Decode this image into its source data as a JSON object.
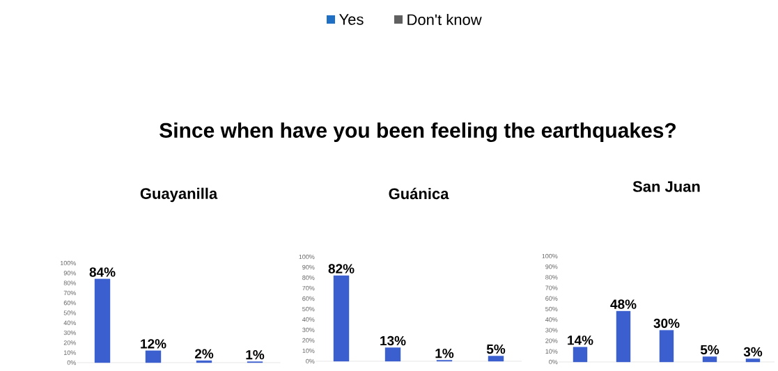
{
  "chart_data": [
    {
      "type": "other",
      "title": "Since when have you been feeling the earthquakes?",
      "annotations": [
        "Yes",
        "Don't know"
      ]
    },
    {
      "type": "bar",
      "title": "Guayanilla",
      "categories": [
        null,
        null,
        null,
        null
      ],
      "values": [
        84,
        12,
        2,
        1
      ],
      "value_labels": [
        "84%",
        "12%",
        "2%",
        "1%"
      ],
      "color": "#3b5fcf",
      "ylim": [
        0,
        100
      ],
      "yticks": [
        {
          "value": 0,
          "label": "0%"
        },
        {
          "value": 10,
          "label": "10%"
        },
        {
          "value": 20,
          "label": "20%"
        },
        {
          "value": 30,
          "label": "30%"
        },
        {
          "value": 40,
          "label": "40%"
        },
        {
          "value": 50,
          "label": "50%"
        },
        {
          "value": 60,
          "label": "60%"
        },
        {
          "value": 70,
          "label": "70%"
        },
        {
          "value": 80,
          "label": "80%"
        },
        {
          "value": 90,
          "label": "90%"
        },
        {
          "value": 100,
          "label": "100%"
        }
      ]
    },
    {
      "type": "bar",
      "title": "Guánica",
      "categories": [
        null,
        null,
        null,
        null
      ],
      "values": [
        82,
        13,
        1,
        5
      ],
      "value_labels": [
        "82%",
        "13%",
        "1%",
        "5%"
      ],
      "color": "#3b5fcf",
      "ylim": [
        0,
        100
      ],
      "yticks": [
        {
          "value": 0,
          "label": "0%"
        },
        {
          "value": 10,
          "label": "10%"
        },
        {
          "value": 20,
          "label": "20%"
        },
        {
          "value": 30,
          "label": "30%"
        },
        {
          "value": 40,
          "label": "40%"
        },
        {
          "value": 50,
          "label": "50%"
        },
        {
          "value": 60,
          "label": "60%"
        },
        {
          "value": 70,
          "label": "70%"
        },
        {
          "value": 80,
          "label": "80%"
        },
        {
          "value": 90,
          "label": "90%"
        },
        {
          "value": 100,
          "label": "100%"
        }
      ]
    },
    {
      "type": "bar",
      "title": "San Juan",
      "categories": [
        null,
        null,
        null,
        null,
        null
      ],
      "values": [
        14,
        48,
        30,
        5,
        3
      ],
      "value_labels": [
        "14%",
        "48%",
        "30%",
        "5%",
        "3%"
      ],
      "color": "#3b5fcf",
      "ylim": [
        0,
        100
      ],
      "yticks": [
        {
          "value": 0,
          "label": "0%"
        },
        {
          "value": 10,
          "label": "10%"
        },
        {
          "value": 20,
          "label": "20%"
        },
        {
          "value": 30,
          "label": "30%"
        },
        {
          "value": 40,
          "label": "40%"
        },
        {
          "value": 50,
          "label": "50%"
        },
        {
          "value": 60,
          "label": "60%"
        },
        {
          "value": 70,
          "label": "70%"
        },
        {
          "value": 80,
          "label": "80%"
        },
        {
          "value": 90,
          "label": "90%"
        },
        {
          "value": 100,
          "label": "100%"
        }
      ]
    }
  ]
}
